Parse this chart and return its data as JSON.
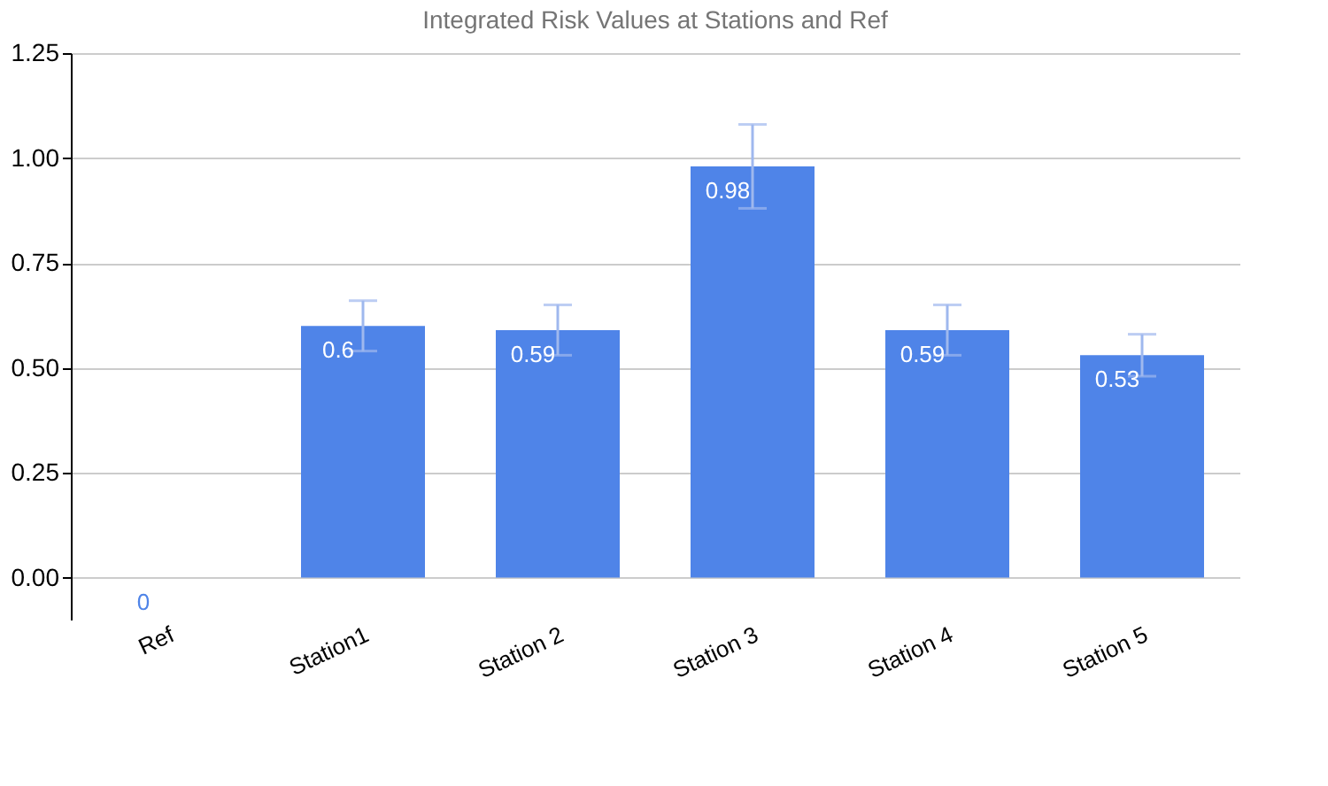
{
  "chart_data": {
    "type": "bar",
    "title": "Integrated Risk Values at Stations and Ref",
    "categories": [
      "Ref",
      "Station1",
      "Station 2",
      "Station 3",
      "Station 4",
      "Station 5"
    ],
    "values": [
      0,
      0.6,
      0.59,
      0.98,
      0.59,
      0.53
    ],
    "errors": [
      null,
      0.06,
      0.06,
      0.1,
      0.06,
      0.05
    ],
    "color": "#4f84e8",
    "ylim": [
      -0.1,
      1.25
    ],
    "yticks": [
      {
        "value": 0,
        "label": "0.00"
      },
      {
        "value": 0.25,
        "label": "0.25"
      },
      {
        "value": 0.5,
        "label": "0.50"
      },
      {
        "value": 0.75,
        "label": "0.75"
      },
      {
        "value": 1,
        "label": "1.00"
      },
      {
        "value": 1.25,
        "label": "1.25"
      }
    ],
    "grid": "y",
    "data_labels": true
  }
}
